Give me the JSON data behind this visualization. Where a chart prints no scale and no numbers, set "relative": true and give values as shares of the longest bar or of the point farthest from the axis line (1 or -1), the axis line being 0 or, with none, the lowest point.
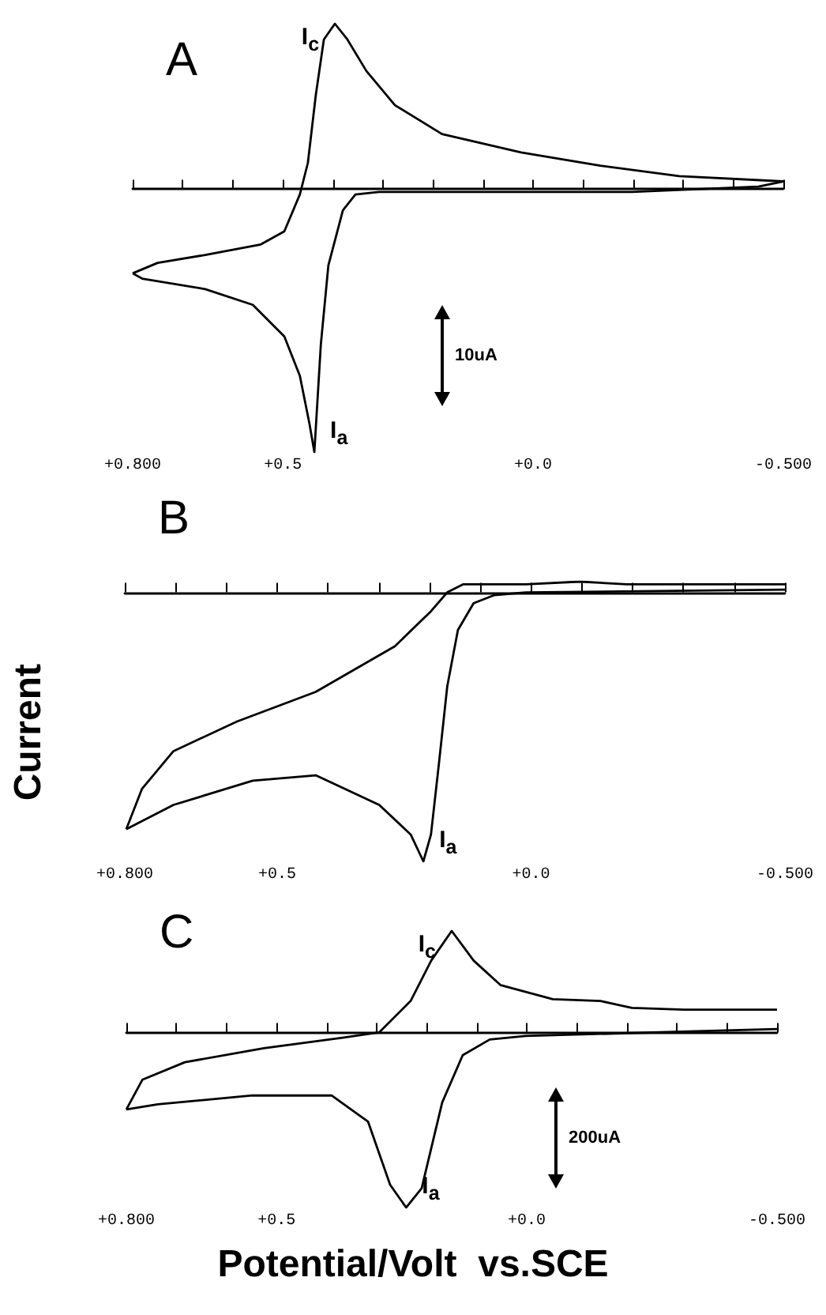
{
  "chart_data": [
    {
      "type": "line",
      "title": "A",
      "relative": true,
      "marker": "none",
      "xlim": [
        0.8,
        -0.5
      ],
      "xticks": [
        {
          "value": 0.8,
          "label": "+0.800"
        },
        {
          "value": 0.7,
          "label": null
        },
        {
          "value": 0.6,
          "label": null
        },
        {
          "value": 0.5,
          "label": "+0.5"
        },
        {
          "value": 0.4,
          "label": null
        },
        {
          "value": 0.3,
          "label": null
        },
        {
          "value": 0.2,
          "label": null
        },
        {
          "value": 0.1,
          "label": null
        },
        {
          "value": 0.0,
          "label": "+0.0"
        },
        {
          "value": -0.1,
          "label": null
        },
        {
          "value": -0.2,
          "label": null
        },
        {
          "value": -0.3,
          "label": null
        },
        {
          "value": -0.4,
          "label": null
        },
        {
          "value": -0.5,
          "label": "-0.500"
        }
      ],
      "series": [
        {
          "color": "#000000",
          "x": [
            -0.5,
            -0.292,
            -0.134,
            0.024,
            0.182,
            0.276,
            0.333,
            0.371,
            0.396,
            0.418,
            0.434,
            0.45,
            0.466,
            0.497,
            0.544,
            0.655,
            0.75,
            0.8
          ],
          "values": [
            0.03,
            0.05,
            0.09,
            0.14,
            0.21,
            0.32,
            0.45,
            0.57,
            0.63,
            0.57,
            0.36,
            0.1,
            -0.02,
            -0.16,
            -0.21,
            -0.25,
            -0.28,
            -0.32
          ]
        },
        {
          "color": "#000000",
          "x": [
            0.8,
            0.781,
            0.655,
            0.56,
            0.497,
            0.466,
            0.447,
            0.437,
            0.424,
            0.409,
            0.38,
            0.355,
            0.308,
            0.118,
            -0.197,
            -0.45,
            -0.5
          ],
          "values": [
            -0.32,
            -0.34,
            -0.38,
            -0.44,
            -0.56,
            -0.71,
            -0.89,
            -1,
            -0.59,
            -0.29,
            -0.08,
            -0.02,
            -0.01,
            -0.01,
            -0.01,
            0.01,
            0.03
          ]
        }
      ],
      "annotations": [
        {
          "text": "I$_{c}$",
          "x": 0.396,
          "y": 0.63
        },
        {
          "text": "I$_{a}$",
          "x": 0.437,
          "y": -1
        },
        "10uA"
      ]
    },
    {
      "type": "line",
      "title": "B",
      "relative": true,
      "marker": "none",
      "ylabel": "Current",
      "xlim": [
        0.8,
        -0.5
      ],
      "xticks": [
        {
          "value": 0.8,
          "label": "+0.800"
        },
        {
          "value": 0.7,
          "label": null
        },
        {
          "value": 0.6,
          "label": null
        },
        {
          "value": 0.5,
          "label": "+0.5"
        },
        {
          "value": 0.4,
          "label": null
        },
        {
          "value": 0.3,
          "label": null
        },
        {
          "value": 0.2,
          "label": null
        },
        {
          "value": 0.1,
          "label": null
        },
        {
          "value": 0.0,
          "label": "+0.0"
        },
        {
          "value": -0.1,
          "label": null
        },
        {
          "value": -0.2,
          "label": null
        },
        {
          "value": -0.3,
          "label": null
        },
        {
          "value": -0.4,
          "label": null
        },
        {
          "value": -0.5,
          "label": "-0.500"
        }
      ],
      "series": [
        {
          "color": "#000000",
          "x": [
            -0.5,
            -0.189,
            -0.096,
            0.01,
            0.134,
            0.165,
            0.197,
            0.268,
            0.424,
            0.579,
            0.704,
            0.766,
            0.797
          ],
          "values": [
            0.03,
            0.03,
            0.04,
            0.03,
            0.03,
            0,
            -0.07,
            -0.2,
            -0.37,
            -0.48,
            -0.59,
            -0.73,
            -0.88
          ]
        },
        {
          "color": "#000000",
          "x": [
            0.797,
            0.704,
            0.548,
            0.424,
            0.299,
            0.237,
            0.212,
            0.197,
            0.181,
            0.165,
            0.144,
            0.113,
            0.072,
            0.01,
            -0.5
          ],
          "values": [
            -0.88,
            -0.79,
            -0.7,
            -0.68,
            -0.79,
            -0.9,
            -1,
            -0.9,
            -0.63,
            -0.35,
            -0.14,
            -0.04,
            -0.01,
            0,
            0.01
          ]
        }
      ],
      "annotations": [
        {
          "text": "I$_{a}$",
          "x": 0.212,
          "y": -1
        }
      ]
    },
    {
      "type": "line",
      "title": "C",
      "relative": true,
      "marker": "none",
      "xlabel": "Potential/Volt  vs.SCE",
      "xlim": [
        0.8,
        -0.5
      ],
      "xticks": [
        {
          "value": 0.8,
          "label": "+0.800"
        },
        {
          "value": 0.7,
          "label": null
        },
        {
          "value": 0.6,
          "label": null
        },
        {
          "value": 0.5,
          "label": "+0.5"
        },
        {
          "value": 0.4,
          "label": null
        },
        {
          "value": 0.3,
          "label": null
        },
        {
          "value": 0.2,
          "label": null
        },
        {
          "value": 0.1,
          "label": null
        },
        {
          "value": 0.0,
          "label": "+0.0"
        },
        {
          "value": -0.1,
          "label": null
        },
        {
          "value": -0.2,
          "label": null
        },
        {
          "value": -0.3,
          "label": null
        },
        {
          "value": -0.4,
          "label": null
        },
        {
          "value": -0.5,
          "label": "-0.500"
        }
      ],
      "series": [
        {
          "color": "#000000",
          "x": [
            0.8,
            0.768,
            0.683,
            0.525,
            0.368,
            0.295,
            0.232,
            0.191,
            0.15,
            0.106,
            0.052,
            -0.052,
            -0.147,
            -0.21,
            -0.314,
            -0.5
          ],
          "values": [
            -0.44,
            -0.27,
            -0.17,
            -0.09,
            -0.03,
            0,
            0.18,
            0.41,
            0.58,
            0.41,
            0.27,
            0.19,
            0.18,
            0.14,
            0.13,
            0.13
          ]
        },
        {
          "color": "#000000",
          "x": [
            -0.5,
            0.002,
            0.074,
            0.128,
            0.169,
            0.21,
            0.241,
            0.273,
            0.317,
            0.39,
            0.548,
            0.737,
            0.8
          ],
          "values": [
            0.02,
            -0.02,
            -0.04,
            -0.13,
            -0.4,
            -0.89,
            -1,
            -0.87,
            -0.51,
            -0.36,
            -0.36,
            -0.41,
            -0.44
          ]
        }
      ],
      "annotations": [
        {
          "text": "I$_{c}$",
          "x": 0.15,
          "y": 0.58
        },
        {
          "text": "I$_{a}$",
          "x": 0.241,
          "y": -1
        },
        "200uA"
      ]
    }
  ]
}
